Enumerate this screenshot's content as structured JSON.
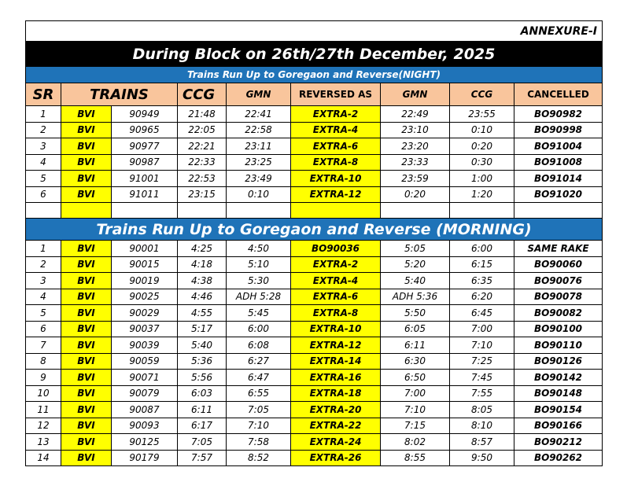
{
  "annexure": "ANNEXURE-I",
  "title": "During Block on 26th/27th December, 2025",
  "night_section_title": "Trains Run Up to Goregaon and Reverse(NIGHT)",
  "morning_section_title": "Trains Run Up to Goregaon and Reverse (MORNING)",
  "headers": {
    "sr": "SR",
    "trains": "TRAINS",
    "ccg": "CCG",
    "gmn": "GMN",
    "reversed_as": "REVERSED AS",
    "gmn2": "GMN",
    "ccg2": "CCG",
    "cancelled": "CANCELLED"
  },
  "night_rows": [
    {
      "sr": "1",
      "from": "BVI",
      "train": "90949",
      "ccg": "21:48",
      "gmn": "22:41",
      "reversed": "EXTRA-2",
      "gmn2": "22:49",
      "ccg2": "23:55",
      "cancelled": "BO90982"
    },
    {
      "sr": "2",
      "from": "BVI",
      "train": "90965",
      "ccg": "22:05",
      "gmn": "22:58",
      "reversed": "EXTRA-4",
      "gmn2": "23:10",
      "ccg2": "0:10",
      "cancelled": "BO90998"
    },
    {
      "sr": "3",
      "from": "BVI",
      "train": "90977",
      "ccg": "22:21",
      "gmn": "23:11",
      "reversed": "EXTRA-6",
      "gmn2": "23:20",
      "ccg2": "0:20",
      "cancelled": "BO91004"
    },
    {
      "sr": "4",
      "from": "BVI",
      "train": "90987",
      "ccg": "22:33",
      "gmn": "23:25",
      "reversed": "EXTRA-8",
      "gmn2": "23:33",
      "ccg2": "0:30",
      "cancelled": "BO91008"
    },
    {
      "sr": "5",
      "from": "BVI",
      "train": "91001",
      "ccg": "22:53",
      "gmn": "23:49",
      "reversed": "EXTRA-10",
      "gmn2": "23:59",
      "ccg2": "1:00",
      "cancelled": "BO91014"
    },
    {
      "sr": "6",
      "from": "BVI",
      "train": "91011",
      "ccg": "23:15",
      "gmn": "0:10",
      "reversed": "EXTRA-12",
      "gmn2": "0:20",
      "ccg2": "1:20",
      "cancelled": "BO91020"
    }
  ],
  "morning_rows": [
    {
      "sr": "1",
      "from": "BVI",
      "train": "90001",
      "ccg": "4:25",
      "gmn": "4:50",
      "reversed": "BO90036",
      "gmn2": "5:05",
      "ccg2": "6:00",
      "cancelled": "SAME RAKE"
    },
    {
      "sr": "2",
      "from": "BVI",
      "train": "90015",
      "ccg": "4:18",
      "gmn": "5:10",
      "reversed": "EXTRA-2",
      "gmn2": "5:20",
      "ccg2": "6:15",
      "cancelled": "BO90060"
    },
    {
      "sr": "3",
      "from": "BVI",
      "train": "90019",
      "ccg": "4:38",
      "gmn": "5:30",
      "reversed": "EXTRA-4",
      "gmn2": "5:40",
      "ccg2": "6:35",
      "cancelled": "BO90076"
    },
    {
      "sr": "4",
      "from": "BVI",
      "train": "90025",
      "ccg": "4:46",
      "gmn": "ADH 5:28",
      "reversed": "EXTRA-6",
      "gmn2": "ADH 5:36",
      "ccg2": "6:20",
      "cancelled": "BO90078"
    },
    {
      "sr": "5",
      "from": "BVI",
      "train": "90029",
      "ccg": "4:55",
      "gmn": "5:45",
      "reversed": "EXTRA-8",
      "gmn2": "5:50",
      "ccg2": "6:45",
      "cancelled": "BO90082"
    },
    {
      "sr": "6",
      "from": "BVI",
      "train": "90037",
      "ccg": "5:17",
      "gmn": "6:00",
      "reversed": "EXTRA-10",
      "gmn2": "6:05",
      "ccg2": "7:00",
      "cancelled": "BO90100"
    },
    {
      "sr": "7",
      "from": "BVI",
      "train": "90039",
      "ccg": "5:40",
      "gmn": "6:08",
      "reversed": "EXTRA-12",
      "gmn2": "6:11",
      "ccg2": "7:10",
      "cancelled": "BO90110"
    },
    {
      "sr": "8",
      "from": "BVI",
      "train": "90059",
      "ccg": "5:36",
      "gmn": "6:27",
      "reversed": "EXTRA-14",
      "gmn2": "6:30",
      "ccg2": "7:25",
      "cancelled": "BO90126"
    },
    {
      "sr": "9",
      "from": "BVI",
      "train": "90071",
      "ccg": "5:56",
      "gmn": "6:47",
      "reversed": "EXTRA-16",
      "gmn2": "6:50",
      "ccg2": "7:45",
      "cancelled": "BO90142"
    },
    {
      "sr": "10",
      "from": "BVI",
      "train": "90079",
      "ccg": "6:03",
      "gmn": "6:55",
      "reversed": "EXTRA-18",
      "gmn2": "7:00",
      "ccg2": "7:55",
      "cancelled": "BO90148"
    },
    {
      "sr": "11",
      "from": "BVI",
      "train": "90087",
      "ccg": "6:11",
      "gmn": "7:05",
      "reversed": "EXTRA-20",
      "gmn2": "7:10",
      "ccg2": "8:05",
      "cancelled": "BO90154"
    },
    {
      "sr": "12",
      "from": "BVI",
      "train": "90093",
      "ccg": "6:17",
      "gmn": "7:10",
      "reversed": "EXTRA-22",
      "gmn2": "7:15",
      "ccg2": "8:10",
      "cancelled": "BO90166"
    },
    {
      "sr": "13",
      "from": "BVI",
      "train": "90125",
      "ccg": "7:05",
      "gmn": "7:58",
      "reversed": "EXTRA-24",
      "gmn2": "8:02",
      "ccg2": "8:57",
      "cancelled": "BO90212"
    },
    {
      "sr": "14",
      "from": "BVI",
      "train": "90179",
      "ccg": "7:57",
      "gmn": "8:52",
      "reversed": "EXTRA-26",
      "gmn2": "8:55",
      "ccg2": "9:50",
      "cancelled": "BO90262"
    }
  ],
  "colors": {
    "title_bg": "#000000",
    "section_bg": "#1f73b8",
    "header_bg": "#f9c59c",
    "highlight": "#ffff00"
  }
}
